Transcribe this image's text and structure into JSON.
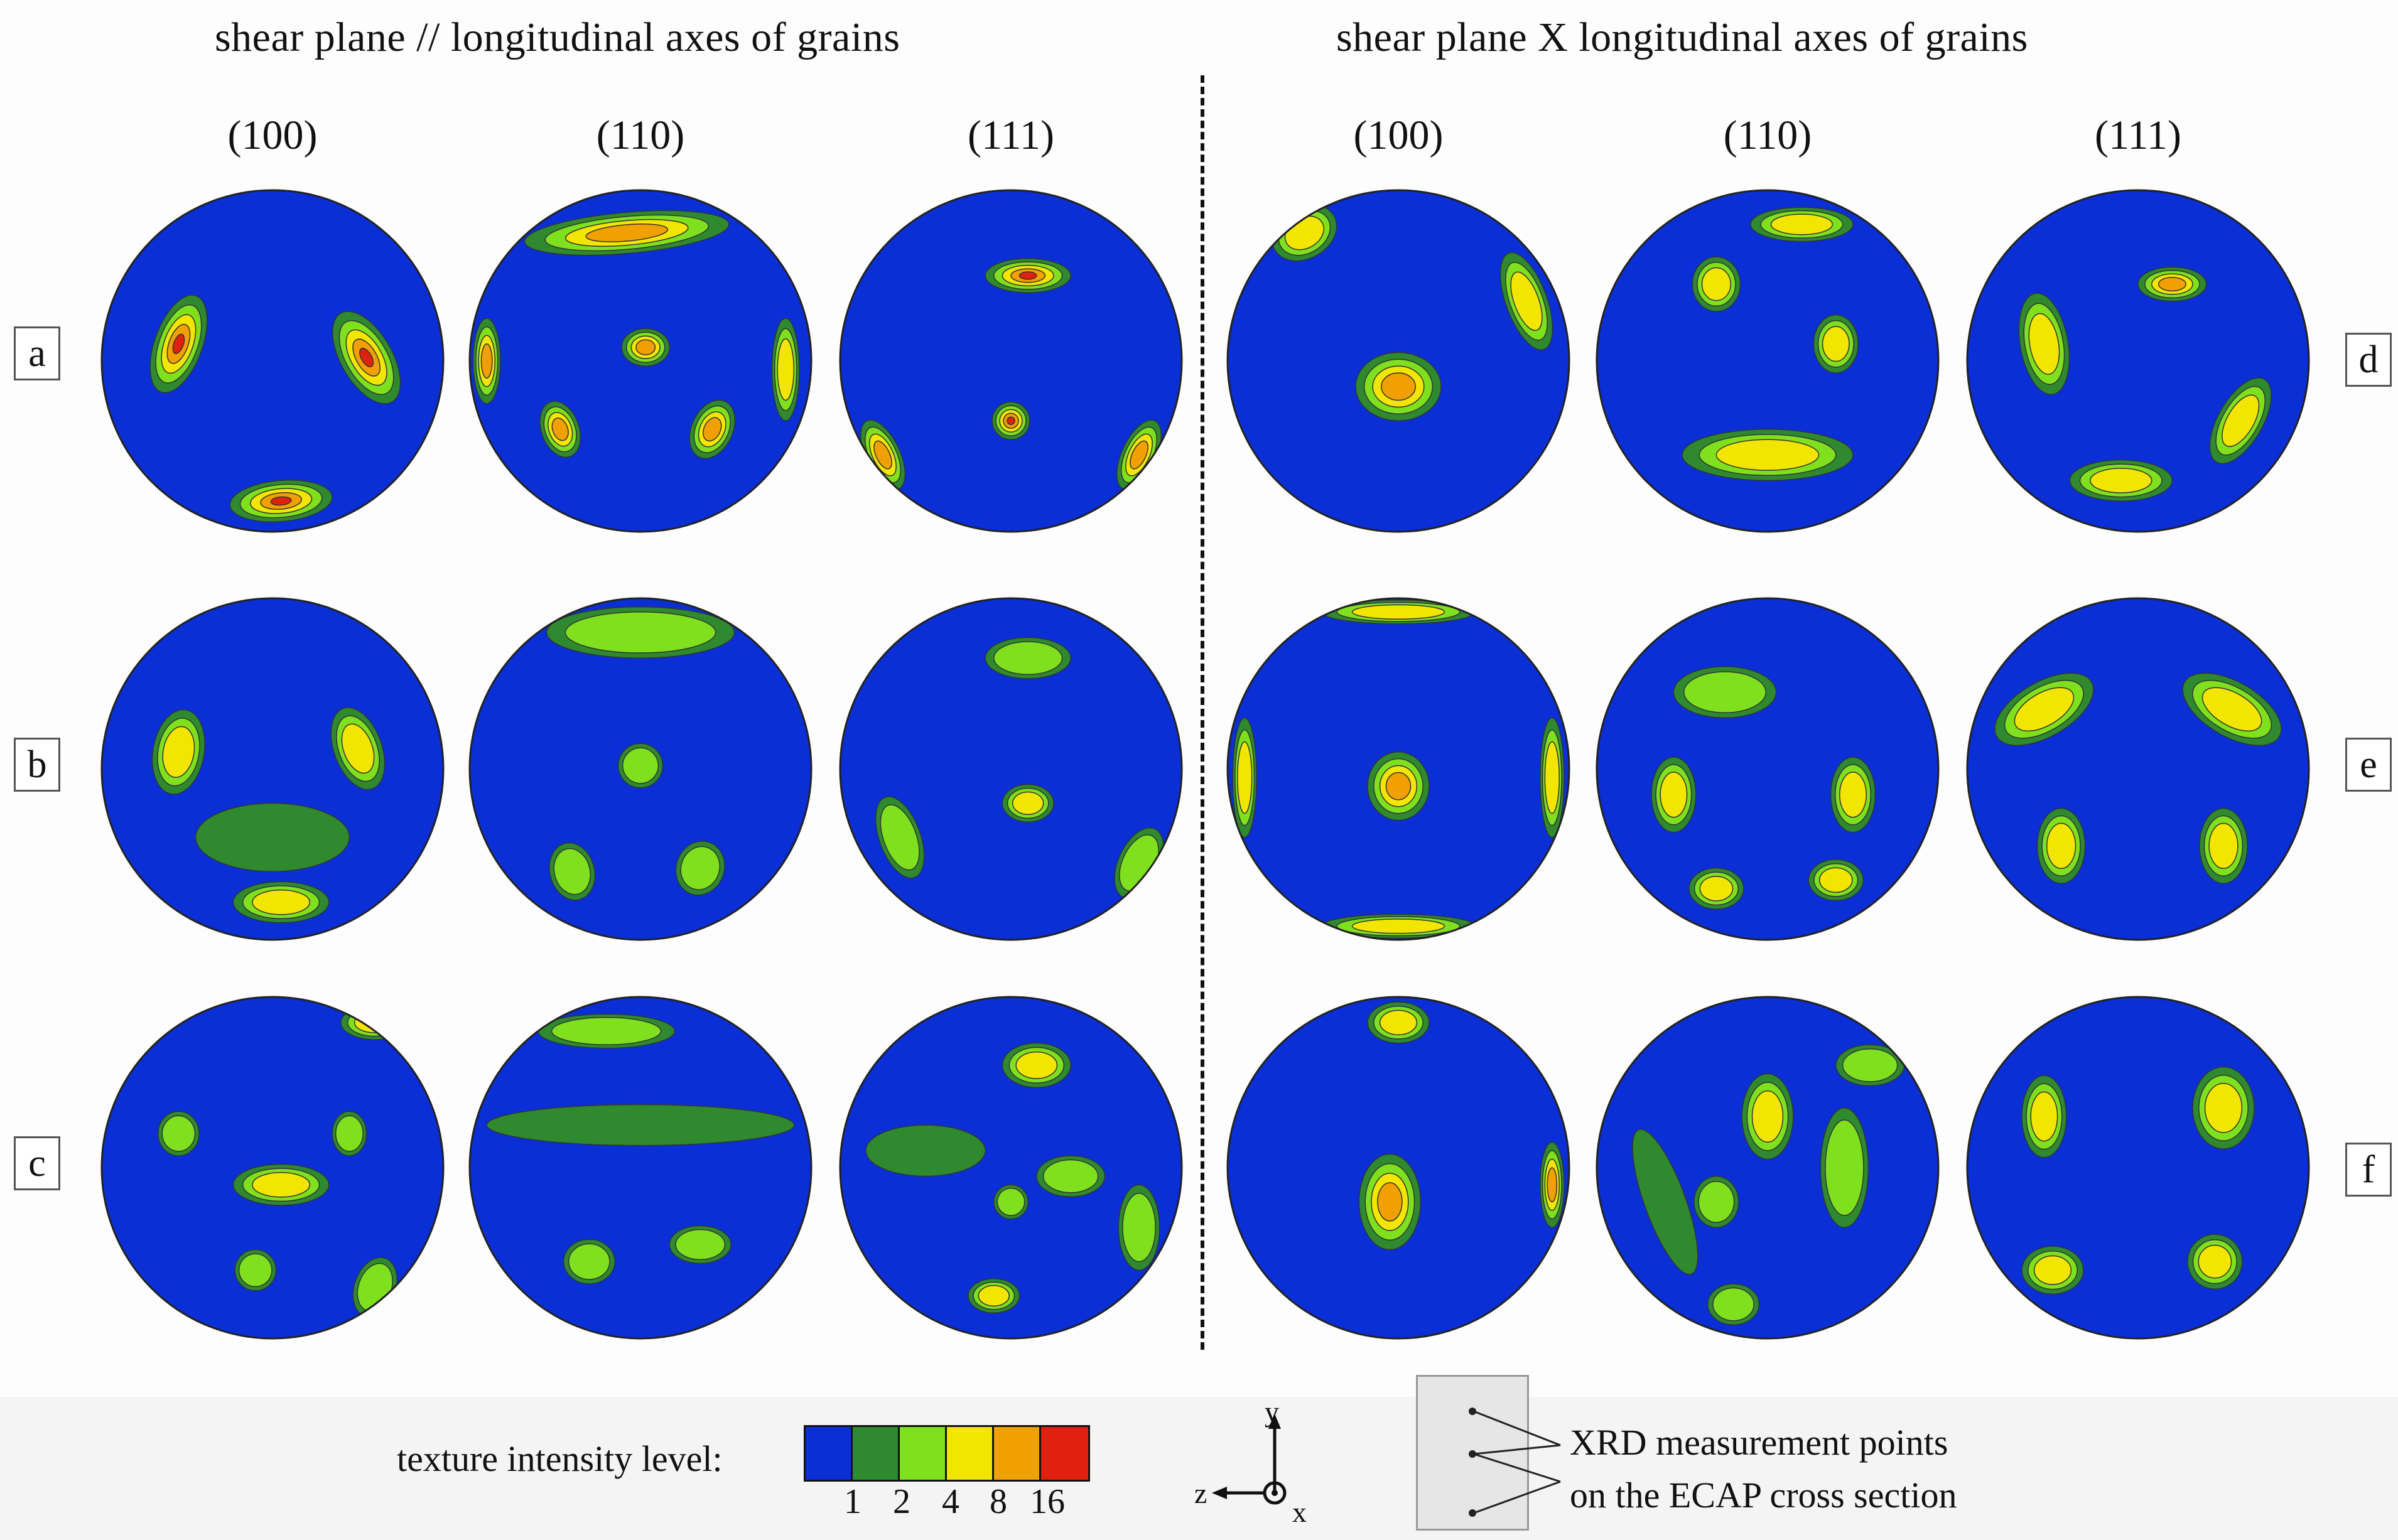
{
  "header": {
    "left_title": "shear plane // longitudinal axes of grains",
    "right_title": "shear plane X longitudinal axes of grains"
  },
  "planes_left": [
    "(100)",
    "(110)",
    "(111)"
  ],
  "planes_right": [
    "(100)",
    "(110)",
    "(111)"
  ],
  "row_labels_left": [
    "a",
    "b",
    "c"
  ],
  "row_labels_right": [
    "d",
    "e",
    "f"
  ],
  "legend": {
    "label": "texture intensity level:",
    "colors": [
      "#0a2fd6",
      "#2f8a2f",
      "#7fe01e",
      "#f2e600",
      "#f0a000",
      "#e02010"
    ],
    "ticks": [
      "1",
      "2",
      "4",
      "8",
      "16"
    ]
  },
  "axes": {
    "y": "y",
    "z": "z",
    "x": "x"
  },
  "annotation": {
    "line1": "XRD measurement points",
    "line2": "on the ECAP cross section"
  }
}
